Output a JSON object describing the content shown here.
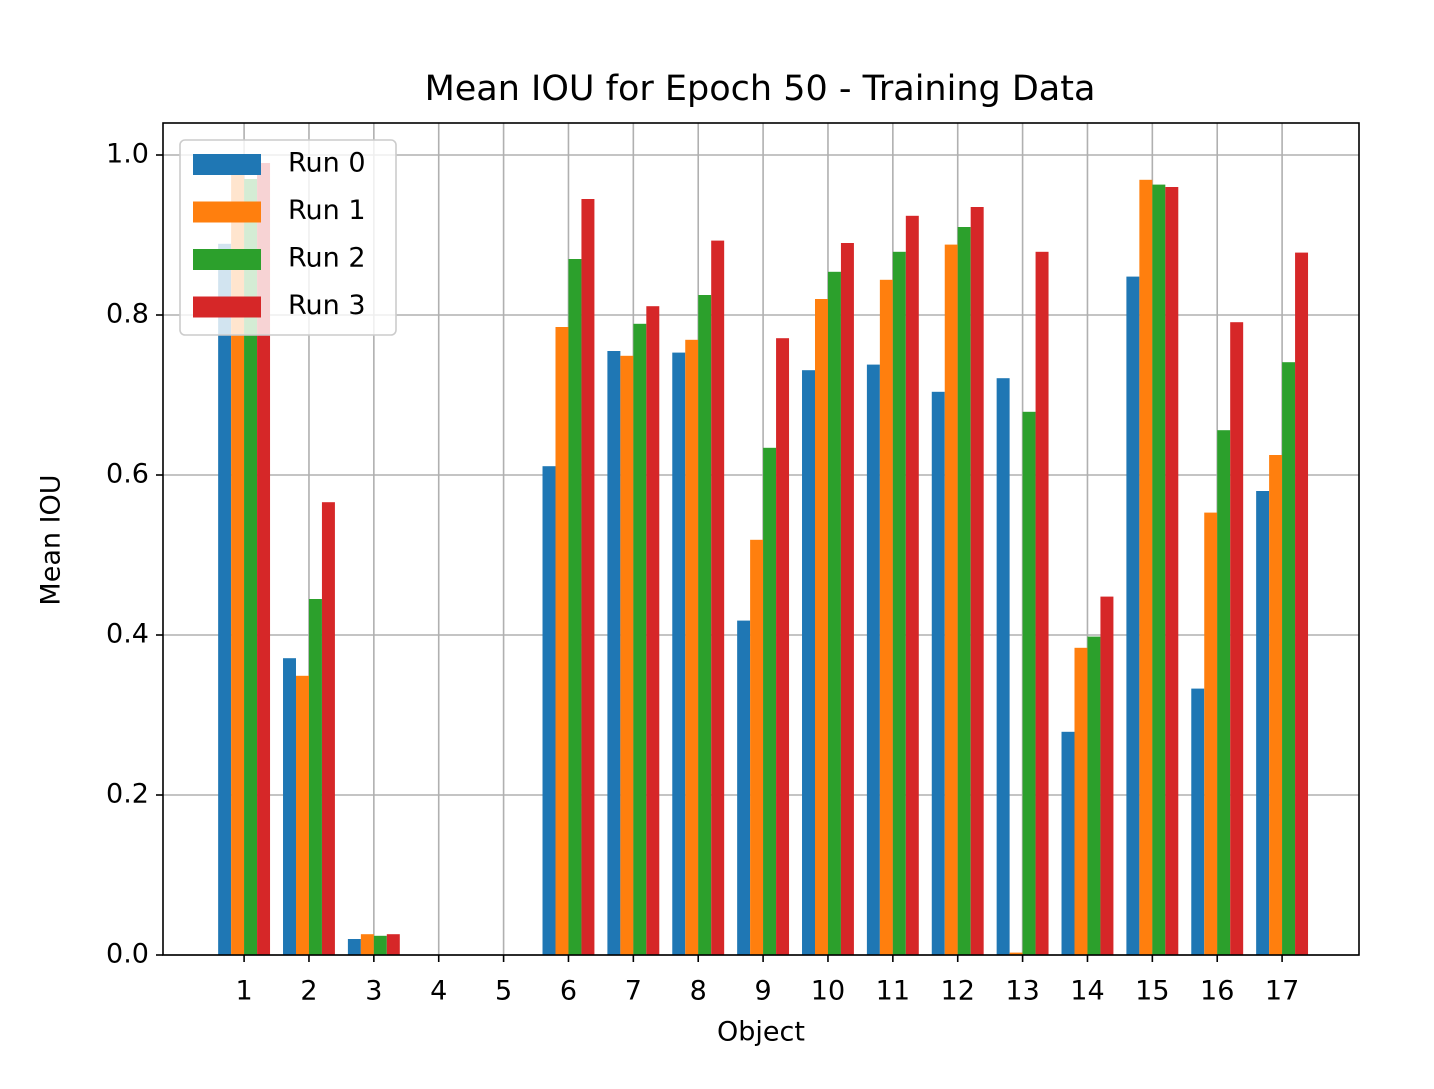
{
  "chart_data": {
    "type": "bar",
    "title": "Mean IOU for Epoch 50 - Training Data",
    "xlabel": "Object",
    "ylabel": "Mean IOU",
    "categories": [
      "1",
      "2",
      "3",
      "4",
      "5",
      "6",
      "7",
      "8",
      "9",
      "10",
      "11",
      "12",
      "13",
      "14",
      "15",
      "16",
      "17"
    ],
    "series": [
      {
        "name": "Run 0",
        "color": "#1f77b4",
        "values": [
          0.889,
          0.371,
          0.02,
          0,
          0,
          0.611,
          0.755,
          0.753,
          0.418,
          0.731,
          0.738,
          0.704,
          0.721,
          0.279,
          0.848,
          0.333,
          0.58
        ]
      },
      {
        "name": "Run 1",
        "color": "#ff7f0e",
        "values": [
          0.975,
          0.349,
          0.026,
          0,
          0,
          0.785,
          0.749,
          0.769,
          0.519,
          0.82,
          0.844,
          0.888,
          0.003,
          0.384,
          0.969,
          0.553,
          0.625
        ]
      },
      {
        "name": "Run 2",
        "color": "#2ca02c",
        "values": [
          0.97,
          0.445,
          0.024,
          0,
          0,
          0.87,
          0.789,
          0.825,
          0.634,
          0.854,
          0.879,
          0.91,
          0.679,
          0.398,
          0.963,
          0.656,
          0.741
        ]
      },
      {
        "name": "Run 3",
        "color": "#d62728",
        "values": [
          0.99,
          0.566,
          0.026,
          0,
          0,
          0.945,
          0.811,
          0.893,
          0.771,
          0.89,
          0.924,
          0.935,
          0.879,
          0.448,
          0.96,
          0.791,
          0.878
        ]
      }
    ],
    "ylim": [
      0,
      1.04
    ],
    "yticks": [
      {
        "value": 0,
        "label": "0.0"
      },
      0.2,
      0.4,
      0.6,
      0.8,
      {
        "value": 1,
        "label": "1.0"
      }
    ],
    "grid": true,
    "legend": "upper-left"
  }
}
